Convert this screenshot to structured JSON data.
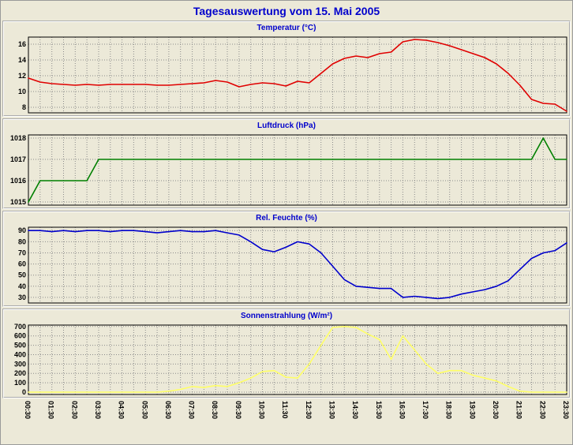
{
  "page": {
    "title": "Tagesauswertung vom 15. Mai 2005"
  },
  "colors": {
    "background": "#ece9d8",
    "title_text": "#0000cc",
    "grid": "#8a8a8a",
    "axis_text": "#000000",
    "plot_border": "#000000",
    "temperature_line": "#e00000",
    "pressure_line": "#008000",
    "humidity_line": "#0000cc",
    "solar_line": "#ffff66"
  },
  "x_axis": {
    "interval_minutes": 30,
    "labels": [
      "00:30",
      "01:30",
      "02:30",
      "03:30",
      "04:30",
      "05:30",
      "06:30",
      "07:30",
      "08:30",
      "09:30",
      "10:30",
      "11:30",
      "12:30",
      "13:30",
      "14:30",
      "15:30",
      "16:30",
      "17:30",
      "18:30",
      "19:30",
      "20:30",
      "21:30",
      "22:30",
      "23:30"
    ]
  },
  "chart_data": [
    {
      "type": "line",
      "title": "Temperatur (°C)",
      "color": "#e00000",
      "y_ticks": [
        16,
        14,
        12,
        10,
        8
      ],
      "ylim": [
        7.3,
        16.9
      ],
      "grid": true,
      "values": [
        11.7,
        11.2,
        11.0,
        10.9,
        10.8,
        10.9,
        10.8,
        10.9,
        10.9,
        10.9,
        10.9,
        10.8,
        10.8,
        10.9,
        11.0,
        11.1,
        11.4,
        11.2,
        10.6,
        10.9,
        11.1,
        11.0,
        10.7,
        11.3,
        11.1,
        12.3,
        13.5,
        14.2,
        14.5,
        14.3,
        14.8,
        15.0,
        16.3,
        16.6,
        16.5,
        16.2,
        15.8,
        15.3,
        14.8,
        14.3,
        13.5,
        12.3,
        10.8,
        9.0,
        8.5,
        8.4,
        7.5
      ]
    },
    {
      "type": "line",
      "title": "Luftdruck (hPa)",
      "color": "#008000",
      "y_ticks": [
        1018,
        1017,
        1016,
        1015
      ],
      "ylim": [
        1014.85,
        1018.15
      ],
      "grid": true,
      "values": [
        1015,
        1016,
        1016,
        1016,
        1016,
        1016,
        1017,
        1017,
        1017,
        1017,
        1017,
        1017,
        1017,
        1017,
        1017,
        1017,
        1017,
        1017,
        1017,
        1017,
        1017,
        1017,
        1017,
        1017,
        1017,
        1017,
        1017,
        1017,
        1017,
        1017,
        1017,
        1017,
        1017,
        1017,
        1017,
        1017,
        1017,
        1017,
        1017,
        1017,
        1017,
        1017,
        1017,
        1017,
        1018,
        1017,
        1017
      ]
    },
    {
      "type": "line",
      "title": "Rel. Feuchte (%)",
      "color": "#0000cc",
      "y_ticks": [
        90,
        80,
        70,
        60,
        50,
        40,
        30
      ],
      "ylim": [
        25,
        93
      ],
      "grid": true,
      "values": [
        90,
        90,
        89,
        90,
        89,
        90,
        90,
        89,
        90,
        90,
        89,
        88,
        89,
        90,
        89,
        89,
        90,
        88,
        86,
        80,
        73,
        71,
        75,
        80,
        78,
        70,
        58,
        46,
        40,
        39,
        38,
        38,
        30,
        31,
        30,
        29,
        30,
        33,
        35,
        37,
        40,
        45,
        55,
        65,
        70,
        72,
        79
      ]
    },
    {
      "type": "line",
      "title": "Sonnenstrahlung (W/m²)",
      "color": "#ffff66",
      "y_ticks": [
        700,
        600,
        500,
        400,
        300,
        200,
        100,
        0
      ],
      "ylim": [
        -25,
        715
      ],
      "grid": true,
      "values": [
        0,
        0,
        0,
        0,
        0,
        0,
        0,
        0,
        0,
        0,
        0,
        0,
        10,
        30,
        60,
        50,
        70,
        60,
        100,
        150,
        220,
        230,
        160,
        150,
        300,
        500,
        690,
        700,
        690,
        620,
        560,
        350,
        600,
        450,
        300,
        200,
        230,
        230,
        180,
        150,
        120,
        60,
        10,
        0,
        0,
        0,
        0
      ]
    }
  ]
}
